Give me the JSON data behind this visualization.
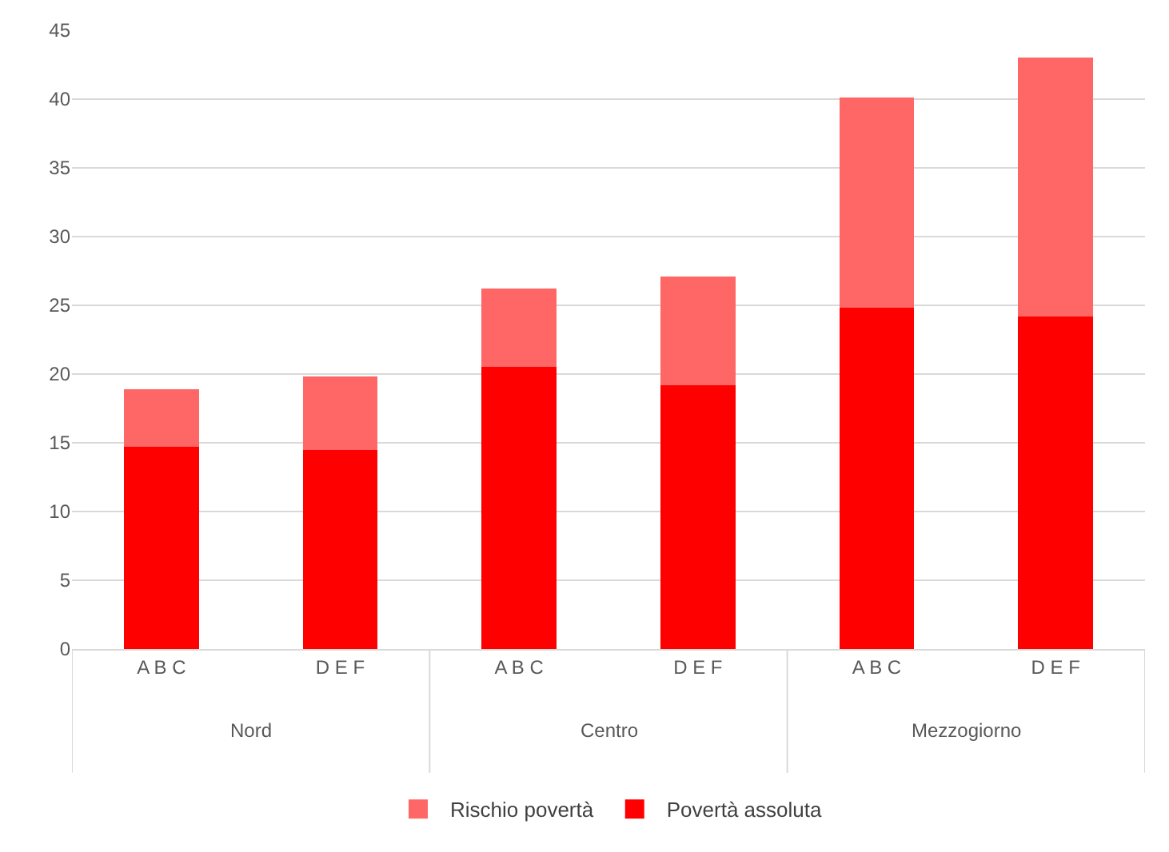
{
  "chart_data": {
    "type": "bar",
    "stacked": true,
    "categories": [
      "A B C",
      "D E F",
      "A B C",
      "D E F",
      "A B C",
      "D E F"
    ],
    "series": [
      {
        "name": "Povertà assoluta",
        "color": "#ff0000",
        "values": [
          14.7,
          14.5,
          20.5,
          19.2,
          24.8,
          24.2
        ]
      },
      {
        "name": "Rischio povertà",
        "color": "#ff6666",
        "values": [
          4.2,
          5.3,
          5.7,
          7.9,
          15.3,
          18.8
        ]
      }
    ],
    "annotations": [
      "Nord",
      "Centro",
      "Mezzogiorno"
    ],
    "ylim": [
      0,
      45
    ],
    "yticks": [
      0,
      5,
      10,
      15,
      20,
      25,
      30,
      35,
      40,
      45
    ],
    "grid": "y",
    "legend": "bottom"
  }
}
